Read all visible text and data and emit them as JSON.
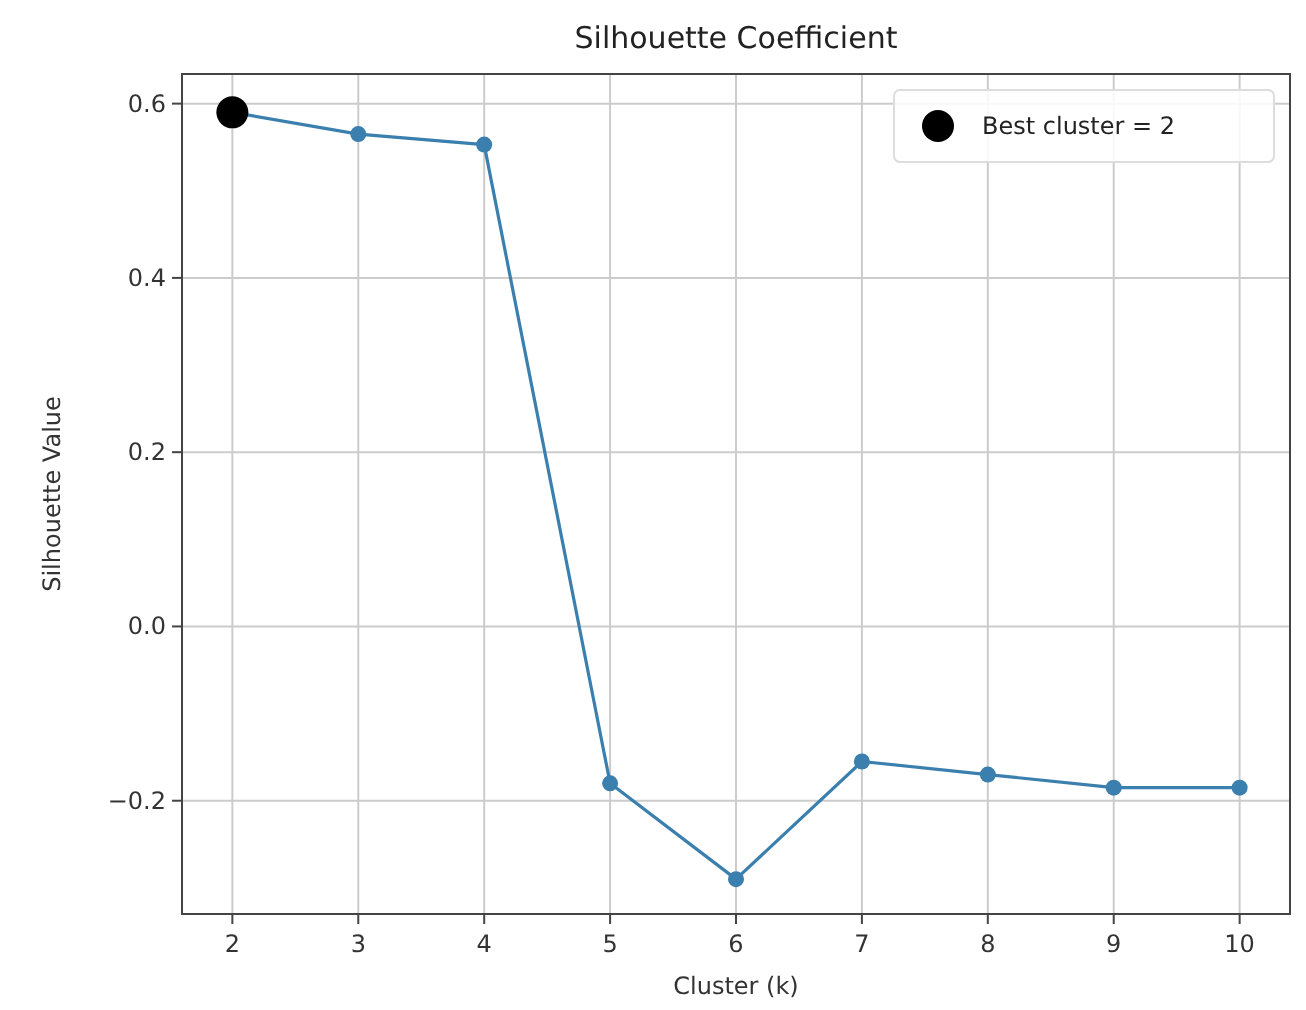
{
  "chart_data": {
    "type": "line",
    "title": "Silhouette Coefficient",
    "xlabel": "Cluster (k)",
    "ylabel": "Silhouette Value",
    "series": [
      {
        "color": "#3a7fae",
        "x": [
          2,
          3,
          4,
          5,
          6,
          7,
          8,
          9,
          10
        ],
        "values": [
          0.59,
          0.565,
          0.553,
          -0.18,
          -0.29,
          -0.155,
          -0.17,
          -0.185,
          -0.185
        ],
        "marker": "circle"
      },
      {
        "type": "scatter",
        "name": "Best cluster = 2",
        "color": "#000000",
        "x": [
          2
        ],
        "values": [
          0.59
        ],
        "marker": "circle"
      }
    ],
    "xlim": [
      1.6,
      10.4
    ],
    "xticks": [
      2,
      3,
      4,
      5,
      6,
      7,
      8,
      9,
      10
    ],
    "ylim": [
      -0.33,
      0.634
    ],
    "yticks": [
      {
        "value": -0.2,
        "label": "−0.2"
      },
      {
        "value": 0,
        "label": "0.0"
      },
      {
        "value": 0.2,
        "label": "0.2"
      },
      {
        "value": 0.4,
        "label": "0.4"
      },
      {
        "value": 0.6,
        "label": "0.6"
      }
    ],
    "grid": true,
    "legend": "top right"
  }
}
